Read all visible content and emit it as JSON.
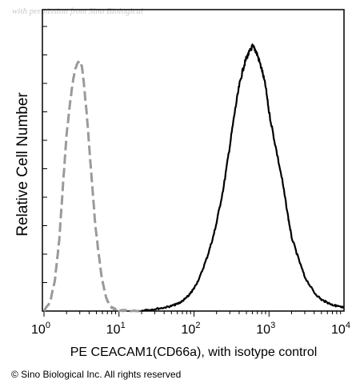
{
  "watermark": "with permission from Sino Biological",
  "copyright": "© Sino Biological Inc. All rights reserved",
  "chart_data": {
    "type": "line",
    "title": "",
    "xlabel": "PE CEACAM1(CD66a),  with isotype control",
    "ylabel": "Relative Cell Number",
    "xscale": "log",
    "xlim": [
      1,
      10000
    ],
    "ylim": [
      0,
      100
    ],
    "x_ticks": [
      {
        "base": "10",
        "exp": "0"
      },
      {
        "base": "10",
        "exp": "1"
      },
      {
        "base": "10",
        "exp": "2"
      },
      {
        "base": "10",
        "exp": "3"
      },
      {
        "base": "10",
        "exp": "4"
      }
    ],
    "grid": false,
    "legend": "none",
    "series": [
      {
        "style": "dashed",
        "color": "#9a9a9a",
        "x": [
          1.0,
          1.2,
          1.4,
          1.6,
          1.8,
          2.0,
          2.2,
          2.4,
          2.6,
          2.8,
          3.0,
          3.2,
          3.4,
          3.7,
          4.0,
          4.4,
          4.8,
          5.3,
          5.8,
          6.4,
          7.0,
          7.7,
          8.5,
          9.3,
          10.3,
          11.5,
          13,
          16,
          20
        ],
        "y": [
          0,
          3,
          11,
          25,
          45,
          62,
          72,
          80,
          85,
          87,
          88,
          86,
          80,
          70,
          58,
          44,
          31,
          21,
          13,
          7,
          3.5,
          1.5,
          0.8,
          0.4,
          0.2,
          0.1,
          0.1,
          0,
          0
        ]
      },
      {
        "style": "solid",
        "color": "#000000",
        "x": [
          20,
          30,
          40,
          50,
          60,
          70,
          80,
          90,
          100,
          120,
          150,
          180,
          200,
          250,
          300,
          350,
          400,
          450,
          500,
          550,
          600,
          650,
          700,
          800,
          900,
          1000,
          1200,
          1500,
          1800,
          2000,
          2500,
          3000,
          4000,
          5000,
          6000,
          7000,
          8000,
          9000,
          10000
        ],
        "y": [
          0.3,
          0.7,
          1.2,
          1.8,
          2.5,
          3.5,
          4.8,
          6.2,
          8,
          12,
          19,
          26,
          31,
          44,
          58,
          70,
          79,
          85,
          89,
          91,
          93,
          92,
          90,
          85,
          79,
          70,
          59,
          46,
          33,
          26,
          18,
          12,
          6.5,
          4,
          3,
          2.2,
          1.8,
          1.4,
          1.2
        ]
      }
    ]
  }
}
